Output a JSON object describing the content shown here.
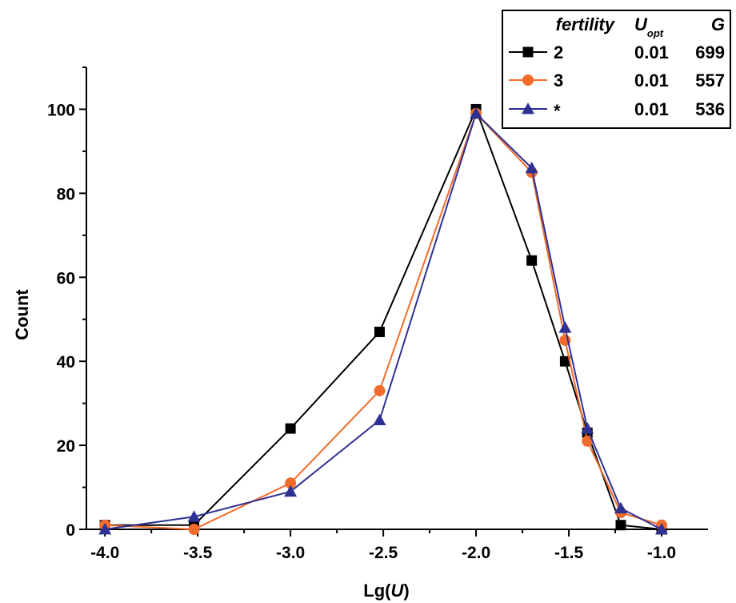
{
  "chart_data": {
    "type": "line",
    "xlabel": {
      "prefix": "Lg(",
      "var": "U",
      "suffix": ")"
    },
    "ylabel": "Count",
    "xlim": [
      -4.1,
      -0.75
    ],
    "ylim": [
      0,
      110
    ],
    "xticks": [
      {
        "v": -4.0,
        "label": "-4.0"
      },
      {
        "v": -3.5,
        "label": "-3.5"
      },
      {
        "v": -3.0,
        "label": "-3.0"
      },
      {
        "v": -2.5,
        "label": "-2.5"
      },
      {
        "v": -2.0,
        "label": "-2.0"
      },
      {
        "v": -1.5,
        "label": "-1.5"
      },
      {
        "v": -1.0,
        "label": "-1.0"
      }
    ],
    "yticks": [
      {
        "v": 0,
        "label": "0"
      },
      {
        "v": 20,
        "label": "20"
      },
      {
        "v": 40,
        "label": "40"
      },
      {
        "v": 60,
        "label": "60"
      },
      {
        "v": 80,
        "label": "80"
      },
      {
        "v": 100,
        "label": "100"
      }
    ],
    "grid": false,
    "legend_position": "top-right",
    "legend": {
      "headers": {
        "fertility": "fertility",
        "uopt_main": "U",
        "uopt_sub": "opt",
        "g": "G"
      }
    },
    "series": [
      {
        "name": "2",
        "uopt": "0.01",
        "g": "699",
        "color": "#000000",
        "marker": "square",
        "x": [
          -4.0,
          -3.52,
          -3.0,
          -2.52,
          -2.0,
          -1.7,
          -1.52,
          -1.4,
          -1.22,
          -1.0
        ],
        "y": [
          1,
          1,
          24,
          47,
          100,
          64,
          40,
          23,
          1,
          0
        ]
      },
      {
        "name": "3",
        "uopt": "0.01",
        "g": "557",
        "color": "#f26b2a",
        "marker": "circle",
        "x": [
          -4.0,
          -3.52,
          -3.0,
          -2.52,
          -2.0,
          -1.7,
          -1.52,
          -1.4,
          -1.22,
          -1.0
        ],
        "y": [
          1,
          0,
          11,
          33,
          99,
          85,
          45,
          21,
          4,
          1
        ]
      },
      {
        "name": "*",
        "uopt": "0.01",
        "g": "536",
        "color": "#2e3192",
        "marker": "triangle",
        "x": [
          -4.0,
          -3.52,
          -3.0,
          -2.52,
          -2.0,
          -1.7,
          -1.52,
          -1.4,
          -1.22,
          -1.0
        ],
        "y": [
          0,
          3,
          9,
          26,
          99,
          86,
          48,
          24,
          5,
          0
        ]
      }
    ]
  }
}
